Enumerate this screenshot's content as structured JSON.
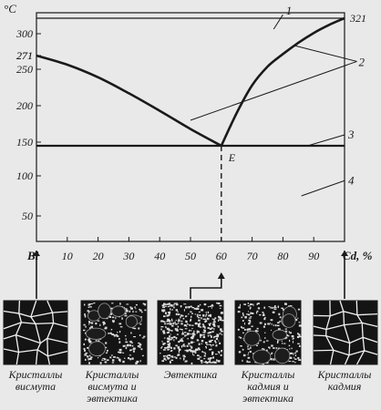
{
  "axes": {
    "y_unit": "°C",
    "x_unit": "%",
    "left_element": "Bi",
    "right_element": "Cd",
    "y_ticks": [
      "50",
      "100",
      "150",
      "200",
      "250",
      "271",
      "300",
      "321"
    ],
    "x_ticks": [
      "10",
      "20",
      "30",
      "40",
      "50",
      "60",
      "70",
      "80",
      "90"
    ]
  },
  "chart_data": {
    "type": "line",
    "title": "",
    "xlabel": "Cd, %",
    "ylabel": "°C",
    "xlim": [
      0,
      100
    ],
    "ylim": [
      0,
      340
    ],
    "series": [
      {
        "name": "",
        "x": [
          0,
          10,
          20,
          30,
          40,
          50,
          60
        ],
        "y": [
          271,
          257,
          239,
          217,
          193,
          168,
          144
        ]
      },
      {
        "name": "",
        "x": [
          60,
          65,
          70,
          75,
          80,
          85,
          90,
          95,
          100
        ],
        "y": [
          144,
          190,
          228,
          254,
          273,
          288,
          301,
          312,
          321
        ]
      },
      {
        "name": "",
        "x": [
          0,
          100
        ],
        "y": [
          144,
          144
        ]
      },
      {
        "name": "",
        "x": [
          0,
          100
        ],
        "y": [
          321,
          321
        ]
      }
    ],
    "annotations": {
      "eutectic_point": {
        "label": "E",
        "x": 60,
        "y": 144
      },
      "melting_bi": "271",
      "melting_cd": "321"
    },
    "region_labels": [
      "1",
      "2",
      "3",
      "4"
    ]
  },
  "microstructures": [
    {
      "caption": "Кристаллы висмута",
      "kind": "large-grains"
    },
    {
      "caption": "Кристаллы висмута и эвтектика",
      "kind": "grains-eutectic"
    },
    {
      "caption": "Эвтектика",
      "kind": "eutectic"
    },
    {
      "caption": "Кристаллы кадмия и эвтектика",
      "kind": "grains-eutectic"
    },
    {
      "caption": "Кристаллы кадмия",
      "kind": "large-grains"
    }
  ],
  "colors": {
    "ink": "#1a1a1a",
    "paper": "#e9e9e9"
  }
}
